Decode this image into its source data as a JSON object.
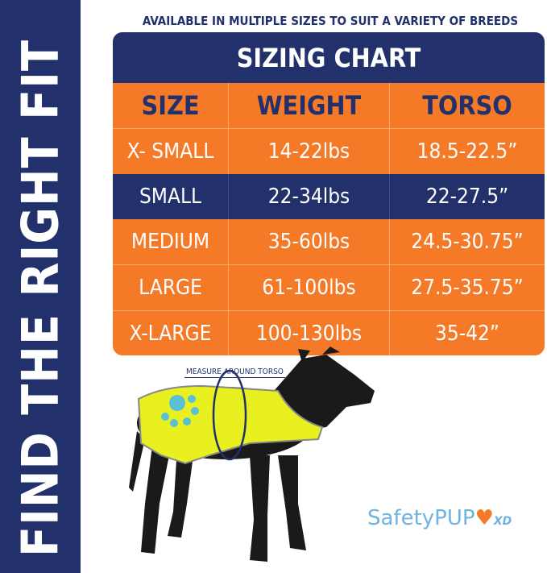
{
  "side_banner": "FIND THE RIGHT FIT",
  "subtitle": "AVAILABLE IN MULTIPLE SIZES TO SUIT A VARIETY OF BREEDS",
  "table": {
    "title": "SIZING CHART",
    "headers": [
      "SIZE",
      "WEIGHT",
      "TORSO"
    ],
    "rows": [
      [
        "X- SMALL",
        "14-22lbs",
        "18.5-22.5”"
      ],
      [
        "SMALL",
        "22-34lbs",
        "22-27.5”"
      ],
      [
        "MEDIUM",
        "35-60lbs",
        "24.5-30.75”"
      ],
      [
        "LARGE",
        "61-100lbs",
        "27.5-35.75”"
      ],
      [
        "X-LARGE",
        "100-130lbs",
        "35-42”"
      ]
    ]
  },
  "measure_label": "MEASURE AROUND TORSO",
  "logo": {
    "text": "SafetyPUP",
    "suffix": "XD"
  },
  "colors": {
    "navy": "#22306b",
    "orange": "#f57a28",
    "vest": "#e8f020",
    "logo_blue": "#6fb3e0"
  }
}
